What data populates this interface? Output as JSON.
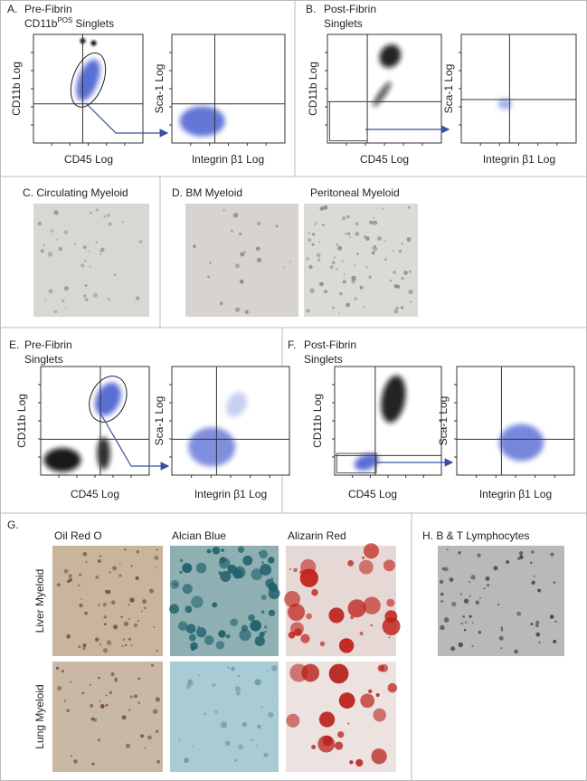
{
  "panel_a": {
    "label": "A.",
    "title_line1": "Pre-Fibrin",
    "title_main": "CD11b",
    "title_sup": "POS",
    "title_rest": "Singlets",
    "plot1": {
      "y_label": "CD11b Log",
      "x_label": "CD45 Log"
    },
    "plot2": {
      "y_label": "Sca-1 Log",
      "x_label": "Integrin β1 Log"
    }
  },
  "panel_b": {
    "label": "B.",
    "title_line1": "Post-Fibrin",
    "title_line2": "Singlets",
    "plot1": {
      "y_label": "CD11b Log",
      "x_label": "CD45 Log"
    },
    "plot2": {
      "y_label": "Sca-1 Log",
      "x_label": "Integrin β1 Log"
    }
  },
  "panel_c": {
    "label": "C.",
    "title": "Circulating Myeloid"
  },
  "panel_d": {
    "label": "D.",
    "titles": [
      "BM Myeloid",
      "Peritoneal Myeloid"
    ]
  },
  "panel_e": {
    "label": "E.",
    "title_line1": "Pre-Fibrin",
    "title_line2": "Singlets",
    "plot1": {
      "y_label": "CD11b Log",
      "x_label": "CD45 Log"
    },
    "plot2": {
      "y_label": "Sca-1 Log",
      "x_label": "Integrin β1 Log"
    }
  },
  "panel_f": {
    "label": "F.",
    "title_line1": "Post-Fibrin",
    "title_line2": "Singlets",
    "plot1": {
      "y_label": "CD11b Log",
      "x_label": "CD45 Log"
    },
    "plot2": {
      "y_label": "Sca-1 Log",
      "x_label": "Integrin β1 Log"
    }
  },
  "panel_g": {
    "label": "G.",
    "columns": [
      "Oil Red O",
      "Alcian Blue",
      "Alizarin Red"
    ],
    "rows": [
      "Liver Myeloid",
      "Lung Myeloid"
    ]
  },
  "panel_h": {
    "label": "H.",
    "title": "B & T Lymphocytes"
  }
}
